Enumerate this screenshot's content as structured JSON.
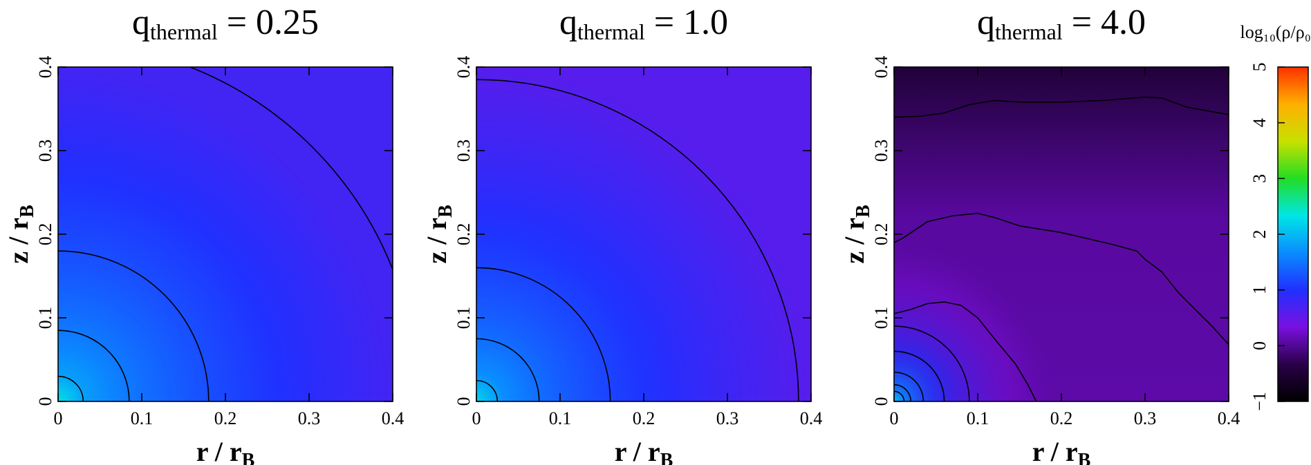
{
  "chart_data": {
    "type": "heatmap",
    "colorbar": {
      "label": "log₁₀(ρ/ρ₀)",
      "range": [
        -1,
        5
      ],
      "ticks": [
        "−1",
        "0",
        "1",
        "2",
        "3",
        "4",
        "5"
      ],
      "colormap": [
        "#000000",
        "#2a0048",
        "#7a10e0",
        "#2030ff",
        "#0a8cff",
        "#00e6e6",
        "#22dd22",
        "#c8e000",
        "#ffb000",
        "#ff3000"
      ]
    },
    "panels": [
      {
        "title": "q",
        "title_sub": "thermal",
        "title_value": " = 0.25",
        "xlabel": "r / r",
        "xlabel_sub": "B",
        "ylabel": "z / r",
        "ylabel_sub": "B",
        "xlim": [
          0,
          0.4
        ],
        "ylim": [
          0,
          0.4
        ],
        "xticks": [
          "0",
          "0.1",
          "0.2",
          "0.3",
          "0.4"
        ],
        "yticks": [
          "0",
          "0.1",
          "0.2",
          "0.3",
          "0.4"
        ],
        "log_density_at_origin": 2.3,
        "background_log_density": 0.75,
        "contour_radii": [
          0.03,
          0.085,
          0.18,
          0.43
        ]
      },
      {
        "title": "q",
        "title_sub": "thermal",
        "title_value": " = 1.0",
        "xlabel": "r / r",
        "xlabel_sub": "B",
        "ylabel": "z / r",
        "ylabel_sub": "B",
        "xlim": [
          0,
          0.4
        ],
        "ylim": [
          0,
          0.4
        ],
        "xticks": [
          "0",
          "0.1",
          "0.2",
          "0.3",
          "0.4"
        ],
        "yticks": [
          "0",
          "0.1",
          "0.2",
          "0.3",
          "0.4"
        ],
        "log_density_at_origin": 2.2,
        "background_log_density": 0.6,
        "contour_radii": [
          0.025,
          0.075,
          0.16,
          0.385
        ]
      },
      {
        "title": "q",
        "title_sub": "thermal",
        "title_value": " = 4.0",
        "xlabel": "r / r",
        "xlabel_sub": "B",
        "ylabel": "z / r",
        "ylabel_sub": "B",
        "xlim": [
          0,
          0.4
        ],
        "ylim": [
          0,
          0.4
        ],
        "xticks": [
          "0",
          "0.1",
          "0.2",
          "0.3",
          "0.4"
        ],
        "yticks": [
          "0",
          "0.1",
          "0.2",
          "0.3",
          "0.4"
        ],
        "log_density_at_origin": 2.0,
        "background_log_density": 0.05,
        "top_log_density": -0.7,
        "contour_radii": [
          0.012,
          0.02,
          0.035,
          0.06,
          0.09
        ],
        "contour_lines": [
          [
            [
              0,
              0.105
            ],
            [
              0.02,
              0.11
            ],
            [
              0.04,
              0.117
            ],
            [
              0.06,
              0.119
            ],
            [
              0.08,
              0.115
            ],
            [
              0.1,
              0.1
            ],
            [
              0.12,
              0.075
            ],
            [
              0.145,
              0.045
            ],
            [
              0.16,
              0.02
            ],
            [
              0.17,
              0
            ]
          ],
          [
            [
              0,
              0.19
            ],
            [
              0.01,
              0.195
            ],
            [
              0.04,
              0.215
            ],
            [
              0.07,
              0.222
            ],
            [
              0.1,
              0.225
            ],
            [
              0.12,
              0.22
            ],
            [
              0.15,
              0.21
            ],
            [
              0.2,
              0.202
            ],
            [
              0.26,
              0.188
            ],
            [
              0.29,
              0.18
            ],
            [
              0.3,
              0.17
            ],
            [
              0.32,
              0.155
            ],
            [
              0.34,
              0.13
            ],
            [
              0.36,
              0.11
            ],
            [
              0.38,
              0.09
            ],
            [
              0.4,
              0.068
            ]
          ],
          [
            [
              0,
              0.34
            ],
            [
              0.03,
              0.341
            ],
            [
              0.06,
              0.345
            ],
            [
              0.09,
              0.355
            ],
            [
              0.12,
              0.36
            ],
            [
              0.15,
              0.358
            ],
            [
              0.2,
              0.358
            ],
            [
              0.25,
              0.36
            ],
            [
              0.3,
              0.364
            ],
            [
              0.32,
              0.363
            ],
            [
              0.35,
              0.352
            ],
            [
              0.4,
              0.343
            ]
          ]
        ]
      }
    ]
  }
}
